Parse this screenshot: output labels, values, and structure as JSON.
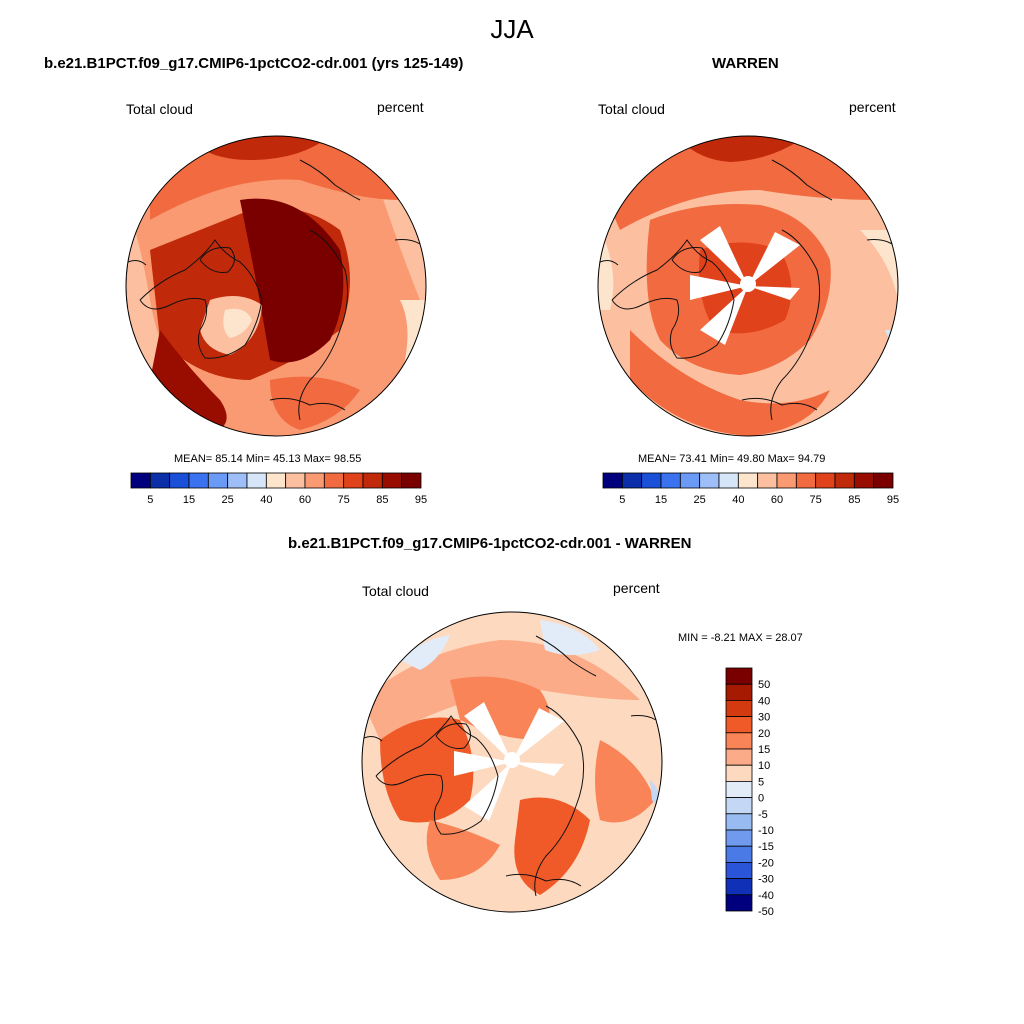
{
  "figure": {
    "title": "JJA"
  },
  "panels": [
    {
      "title": "b.e21.B1PCT.f09_g17.CMIP6-1pctCO2-cdr.001 (yrs 125-149)",
      "variable": "Total cloud",
      "units": "percent",
      "stats": "MEAN=  85.14  Min=  45.13  Max=  98.55",
      "colorbar_ticks": [
        "5",
        "15",
        "25",
        "40",
        "60",
        "75",
        "85",
        "95"
      ]
    },
    {
      "title": "WARREN",
      "variable": "Total cloud",
      "units": "percent",
      "stats": "MEAN=  73.41  Min=  49.80  Max=  94.79",
      "colorbar_ticks": [
        "5",
        "15",
        "25",
        "40",
        "60",
        "75",
        "85",
        "95"
      ]
    },
    {
      "title": "b.e21.B1PCT.f09_g17.CMIP6-1pctCO2-cdr.001 - WARREN",
      "variable": "Total cloud",
      "units": "percent",
      "stats": "MIN =  -8.21 MAX =  28.07",
      "colorbar_ticks": [
        "50",
        "40",
        "30",
        "20",
        "15",
        "10",
        "5",
        "0",
        "-5",
        "-10",
        "-15",
        "-20",
        "-30",
        "-40",
        "-50"
      ]
    }
  ],
  "colors": {
    "abs_palette": [
      "#00007f",
      "#0b2fa8",
      "#1a4fd8",
      "#3a72f0",
      "#6a9af5",
      "#9dbef6",
      "#d6e6f8",
      "#fde4cc",
      "#fcc0a0",
      "#f99a72",
      "#f26a40",
      "#e0421c",
      "#c02a0a",
      "#990c00",
      "#7a0000"
    ],
    "diff_palette": [
      "#7a0000",
      "#a51a00",
      "#d43a10",
      "#f05a28",
      "#f88458",
      "#fbab88",
      "#fdd9c0",
      "#e2ecf8",
      "#c4d8f6",
      "#98bbf2",
      "#6f9aed",
      "#4a7ae6",
      "#2a55d8",
      "#1030b8",
      "#00007f"
    ],
    "land_outline": "#111111"
  }
}
